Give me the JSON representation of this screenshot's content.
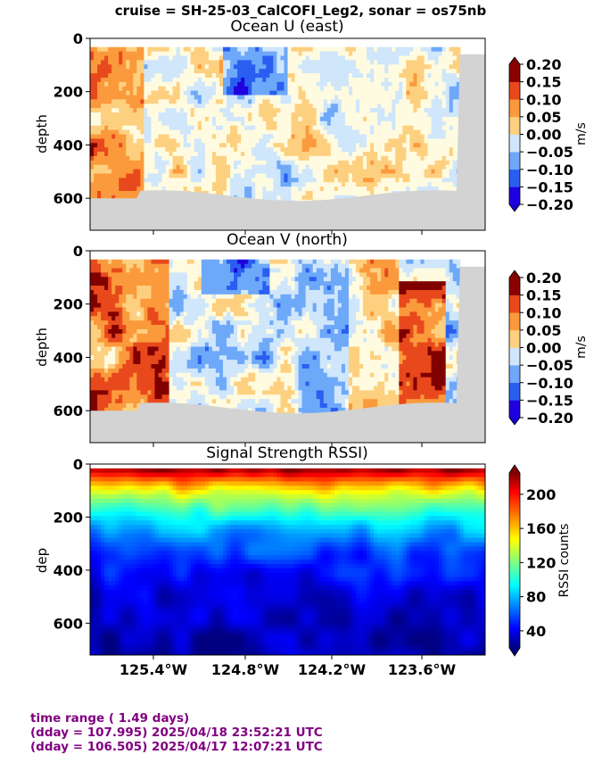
{
  "figure": {
    "suptitle": "cruise = SH-25-03_CalCOFI_Leg2,  sonar = os75nb"
  },
  "colors": {
    "ground": "#d3d3d3",
    "footer_text": "#800080"
  },
  "footer": {
    "line1": "time range ( 1.49 days)",
    "line2": "(dday = 107.995) 2025/04/18 23:52:21 UTC",
    "line3": "(dday = 106.505) 2025/04/17 12:07:21 UTC"
  },
  "chart_data": [
    {
      "type": "heatmap",
      "title": "Ocean U (east)",
      "ylabel": "depth",
      "xlabel": "",
      "x_ticks": [
        "125.4°W",
        "124.8°W",
        "124.2°W",
        "123.6°W"
      ],
      "y_ticks": [
        "0",
        "200",
        "400",
        "600"
      ],
      "y_inverted": true,
      "ylim": [
        720,
        0
      ],
      "colorbar": {
        "label": "m/s",
        "ticks": [
          "0.20",
          "0.15",
          "0.10",
          "0.05",
          "0.00",
          "−0.05",
          "−0.10",
          "−0.15",
          "−0.20"
        ],
        "levels": [
          -0.2,
          -0.15,
          -0.1,
          -0.05,
          0,
          0.05,
          0.1,
          0.15,
          0.2
        ],
        "colormap": "diverging blue-white-red"
      }
    },
    {
      "type": "heatmap",
      "title": "Ocean V (north)",
      "ylabel": "depth",
      "xlabel": "",
      "x_ticks": [
        "125.4°W",
        "124.8°W",
        "124.2°W",
        "123.6°W"
      ],
      "y_ticks": [
        "0",
        "200",
        "400",
        "600"
      ],
      "y_inverted": true,
      "ylim": [
        720,
        0
      ],
      "colorbar": {
        "label": "m/s",
        "ticks": [
          "0.20",
          "0.15",
          "0.10",
          "0.05",
          "0.00",
          "−0.05",
          "−0.10",
          "−0.15",
          "−0.20"
        ],
        "levels": [
          -0.2,
          -0.15,
          -0.1,
          -0.05,
          0,
          0.05,
          0.1,
          0.15,
          0.2
        ],
        "colormap": "diverging blue-white-red"
      }
    },
    {
      "type": "heatmap",
      "title": "Signal Strength RSSI)",
      "ylabel": "dep",
      "xlabel": "",
      "x_ticks": [
        "125.4°W",
        "124.8°W",
        "124.2°W",
        "123.6°W"
      ],
      "y_ticks": [
        "0",
        "200",
        "400",
        "600"
      ],
      "y_inverted": true,
      "ylim": [
        720,
        0
      ],
      "colorbar": {
        "label": "RSSI counts",
        "ticks": [
          "200",
          "160",
          "120",
          "80",
          "40"
        ],
        "range": [
          20,
          225
        ],
        "colormap": "jet"
      }
    }
  ]
}
